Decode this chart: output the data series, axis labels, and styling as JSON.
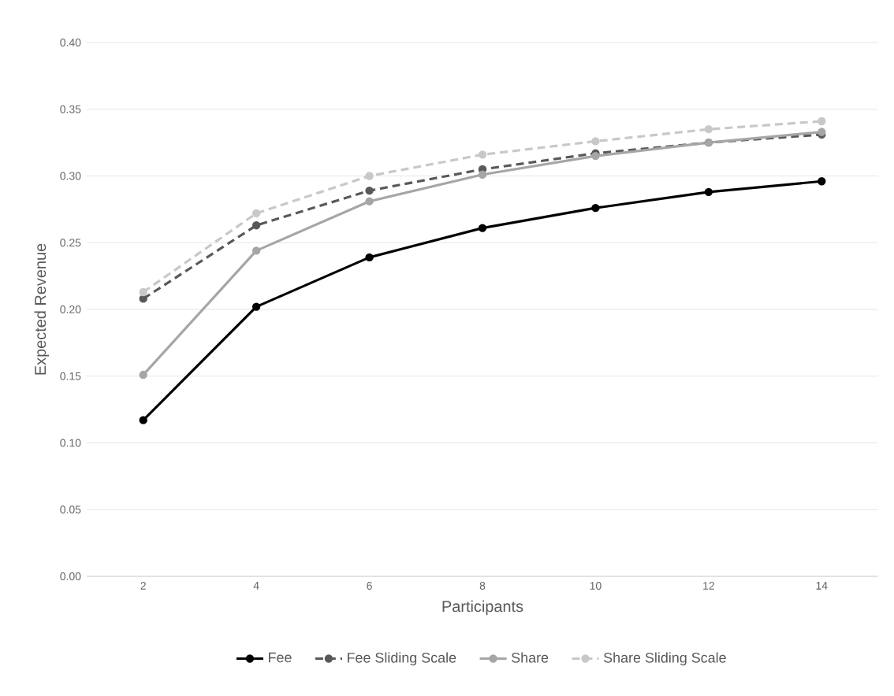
{
  "chart_data": {
    "type": "line",
    "xlabel": "Participants",
    "ylabel": "Expected Revenue",
    "categories": [
      "2",
      "4",
      "6",
      "8",
      "10",
      "12",
      "14"
    ],
    "ylim": [
      0,
      0.4
    ],
    "yticks": [
      {
        "value": 0,
        "label": "0.00"
      },
      {
        "value": 0.05,
        "label": "0.05"
      },
      {
        "value": 0.1,
        "label": "0.10"
      },
      {
        "value": 0.15,
        "label": "0.15"
      },
      {
        "value": 0.2,
        "label": "0.20"
      },
      {
        "value": 0.25,
        "label": "0.25"
      },
      {
        "value": 0.3,
        "label": "0.30"
      },
      {
        "value": 0.35,
        "label": "0.35"
      },
      {
        "value": 0.4,
        "label": "0.40"
      }
    ],
    "grid": "y",
    "legend": "bottom",
    "marker": "circle",
    "series": [
      {
        "name": "Fee",
        "color": "#000000",
        "line_style": "solid",
        "values": [
          0.117,
          0.202,
          0.239,
          0.261,
          0.276,
          0.288,
          0.296
        ]
      },
      {
        "name": "Fee Sliding Scale",
        "color": "#595959",
        "line_style": "dashed",
        "values": [
          0.208,
          0.263,
          0.289,
          0.305,
          0.317,
          0.325,
          0.331
        ]
      },
      {
        "name": "Share",
        "color": "#a6a6a6",
        "line_style": "solid",
        "values": [
          0.151,
          0.244,
          0.281,
          0.301,
          0.315,
          0.325,
          0.333
        ]
      },
      {
        "name": "Share Sliding Scale",
        "color": "#c8c8c8",
        "line_style": "dashed",
        "values": [
          0.213,
          0.272,
          0.3,
          0.316,
          0.326,
          0.335,
          0.341
        ]
      }
    ]
  }
}
